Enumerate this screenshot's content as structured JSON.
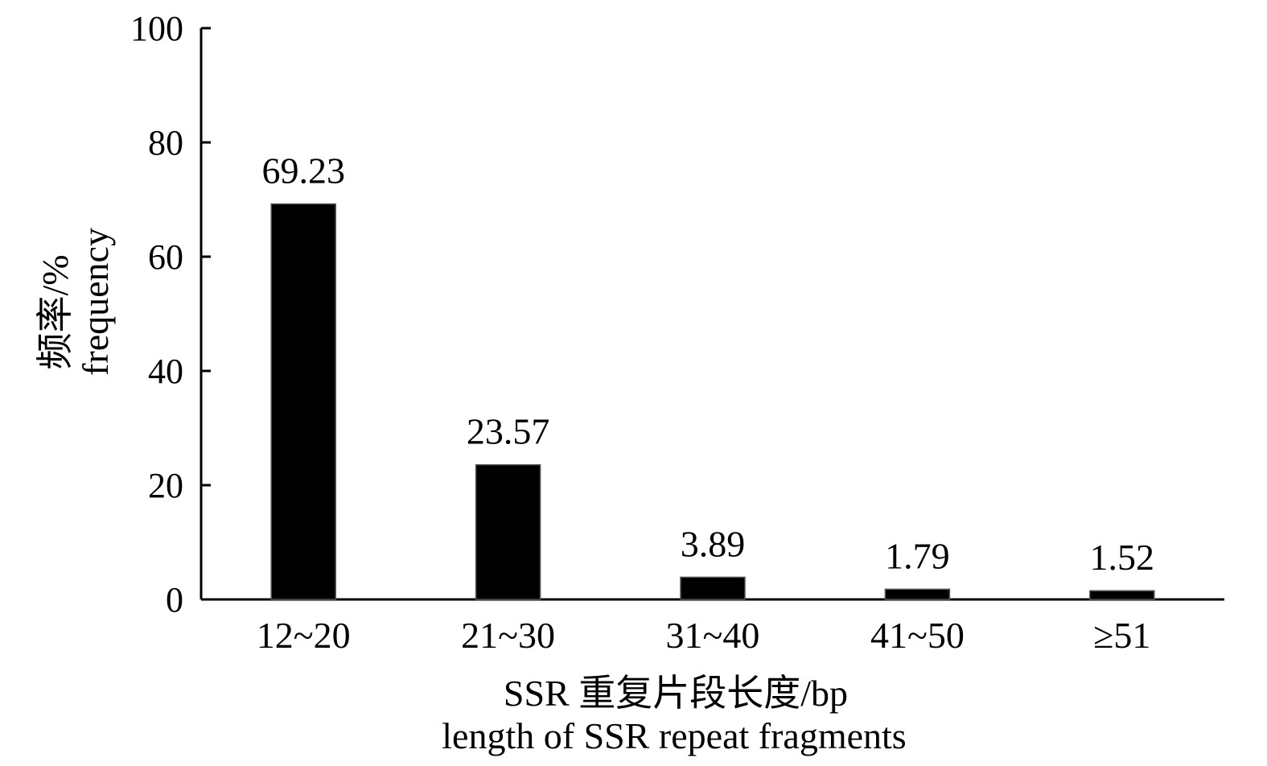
{
  "chart_data": {
    "type": "bar",
    "categories": [
      "12~20",
      "21~30",
      "31~40",
      "41~50",
      "≥51"
    ],
    "values": [
      69.23,
      23.57,
      3.89,
      1.79,
      1.52
    ],
    "value_labels": [
      "69.23",
      "23.57",
      "3.89",
      "1.79",
      "1.52"
    ],
    "ylim": [
      0,
      100
    ],
    "yticks": [
      0,
      20,
      40,
      60,
      80,
      100
    ],
    "ytick_labels": [
      "0",
      "20",
      "40",
      "60",
      "80",
      "100"
    ],
    "ylabel_lines": [
      "频率/%",
      "frequency"
    ],
    "xlabel_lines": [
      "SSR 重复片段长度/bp",
      "length of SSR repeat fragments"
    ],
    "bar_color": "#000000",
    "grid": false,
    "legend": "none"
  }
}
